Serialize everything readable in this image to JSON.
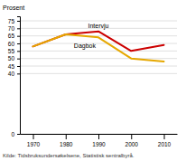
{
  "chart_data": {
    "type": "line",
    "ylabel": "Prosent",
    "footnote": "Kilde: Tidsbruksundersøkelsene, Statistisk sentralbyrå.",
    "x": [
      1970,
      1980,
      1990,
      2000,
      2010
    ],
    "series": [
      {
        "name": "Intervju",
        "color": "#cc0000",
        "values": [
          58,
          66,
          68,
          55,
          59
        ]
      },
      {
        "name": "Dagbok",
        "color": "#e6a800",
        "values": [
          58,
          66,
          64,
          50,
          48
        ]
      }
    ],
    "xlim": [
      1966,
      2014
    ],
    "xticks": [
      1970,
      1980,
      1990,
      2000,
      2010
    ],
    "ylim": [
      0,
      78
    ],
    "yticks": [
      0,
      40,
      45,
      50,
      55,
      60,
      65,
      70,
      75
    ],
    "grid": true
  }
}
